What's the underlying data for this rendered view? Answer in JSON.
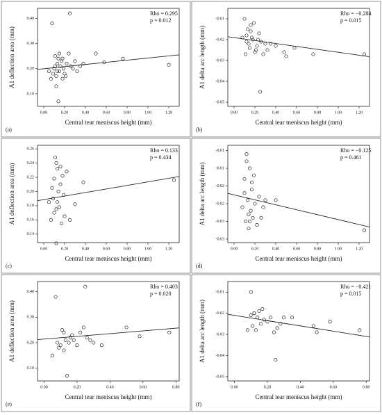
{
  "chart_data": [
    {
      "type": "scatter",
      "panel": "(a)",
      "x_label": "Central tear meniscus height (mm)",
      "y_label": "A1 deflection area (mm)",
      "annotations": [
        "Rho = 0.295",
        "p = 0.012"
      ],
      "color": "#222222",
      "x": [
        0.08,
        0.25,
        0.14,
        1.2,
        0.76,
        0.58,
        0.5,
        0.05,
        0.07,
        0.09,
        0.1,
        0.11,
        0.12,
        0.13,
        0.14,
        0.15,
        0.16,
        0.17,
        0.18,
        0.19,
        0.2,
        0.22,
        0.24,
        0.26,
        0.28,
        0.3,
        0.32,
        0.35,
        0.38,
        0.12,
        0.15,
        0.18,
        0.21,
        0.11,
        0.13
      ],
      "y": [
        0.38,
        0.42,
        0.07,
        0.215,
        0.24,
        0.225,
        0.26,
        0.19,
        0.16,
        0.18,
        0.2,
        0.25,
        0.17,
        0.22,
        0.24,
        0.19,
        0.21,
        0.23,
        0.16,
        0.2,
        0.18,
        0.22,
        0.26,
        0.21,
        0.2,
        0.23,
        0.19,
        0.21,
        0.22,
        0.13,
        0.26,
        0.24,
        0.17,
        0.21,
        0.19
      ],
      "trend_line": {
        "x": [
          -0.06,
          1.3
        ],
        "y": [
          0.197,
          0.255
        ]
      },
      "xlim": [
        -0.06,
        1.3
      ],
      "ylim": [
        0.05,
        0.44
      ],
      "xticks": [
        {
          "value": 0,
          "label": "0.00"
        },
        {
          "value": 0.2,
          "label": "0.20"
        },
        {
          "value": 0.4,
          "label": "0.40"
        },
        {
          "value": 0.6,
          "label": "0.60"
        },
        {
          "value": 0.8,
          "label": "0.80"
        },
        {
          "value": 1,
          "label": "1.00"
        },
        {
          "value": 1.2,
          "label": "1.20"
        }
      ],
      "yticks": [
        {
          "value": 0.1,
          "label": "0.10"
        },
        {
          "value": 0.2,
          "label": "0.20"
        },
        {
          "value": 0.3,
          "label": "0.30"
        },
        {
          "value": 0.4,
          "label": "0.40"
        }
      ]
    },
    {
      "type": "scatter",
      "panel": "(b)",
      "x_label": "Central tear meniscus height (mm)",
      "y_label": "A1 delta arc length (mm)",
      "annotations": [
        "Rho = −0.284",
        "p = 0.015"
      ],
      "color": "#222222",
      "x": [
        0.25,
        1.25,
        0.76,
        0.5,
        0.58,
        0.48,
        0.1,
        0.12,
        0.14,
        0.16,
        0.18,
        0.2,
        0.22,
        0.24,
        0.26,
        0.28,
        0.3,
        0.32,
        0.35,
        0.4,
        0.08,
        0.11,
        0.13,
        0.15,
        0.17,
        0.19,
        0.21,
        0.23,
        0.12,
        0.16
      ],
      "y": [
        -0.045,
        -0.027,
        -0.027,
        -0.028,
        -0.024,
        -0.026,
        -0.01,
        -0.018,
        -0.022,
        -0.013,
        -0.02,
        -0.026,
        -0.023,
        -0.017,
        -0.021,
        -0.027,
        -0.022,
        -0.025,
        -0.022,
        -0.023,
        -0.019,
        -0.027,
        -0.015,
        -0.024,
        -0.019,
        -0.012,
        -0.025,
        -0.02,
        -0.021,
        -0.016
      ],
      "trend_line": {
        "x": [
          -0.06,
          1.3
        ],
        "y": [
          -0.0186,
          -0.0282
        ]
      },
      "xlim": [
        -0.06,
        1.3
      ],
      "ylim": [
        -0.052,
        -0.005
      ],
      "xticks": [
        {
          "value": 0,
          "label": "0.00"
        },
        {
          "value": 0.2,
          "label": "0.20"
        },
        {
          "value": 0.4,
          "label": "0.40"
        },
        {
          "value": 0.6,
          "label": "0.60"
        },
        {
          "value": 0.8,
          "label": "0.80"
        },
        {
          "value": 1,
          "label": "1.00"
        },
        {
          "value": 1.2,
          "label": "1.20"
        }
      ],
      "yticks": [
        -0.01,
        -0.02,
        -0.03,
        -0.04,
        -0.05
      ]
    },
    {
      "type": "scatter",
      "panel": "(c)",
      "x_label": "Central tear meniscus height (mm)",
      "y_label": "A1 deflection area (mm)",
      "annotations": [
        "Rho = 0.133",
        "p = 0.434"
      ],
      "color": "#222222",
      "x": [
        1.25,
        0.38,
        0.3,
        0.12,
        0.05,
        0.07,
        0.08,
        0.09,
        0.1,
        0.11,
        0.12,
        0.13,
        0.14,
        0.15,
        0.16,
        0.17,
        0.18,
        0.19,
        0.2,
        0.22,
        0.25,
        0.1,
        0.13,
        0.16,
        0.12
      ],
      "y": [
        0.216,
        0.213,
        0.182,
        0.127,
        0.185,
        0.16,
        0.205,
        0.19,
        0.218,
        0.248,
        0.175,
        0.232,
        0.2,
        0.178,
        0.235,
        0.155,
        0.222,
        0.195,
        0.165,
        0.228,
        0.16,
        0.17,
        0.185,
        0.21,
        0.24
      ],
      "trend_line": {
        "x": [
          -0.06,
          1.3
        ],
        "y": [
          0.187,
          0.221
        ]
      },
      "xlim": [
        -0.06,
        1.3
      ],
      "ylim": [
        0.128,
        0.265
      ],
      "xticks": [
        {
          "value": 0,
          "label": "0.00"
        },
        {
          "value": 0.2,
          "label": "0.20"
        },
        {
          "value": 0.4,
          "label": "0.40"
        },
        {
          "value": 0.6,
          "label": "0.60"
        },
        {
          "value": 0.8,
          "label": "0.80"
        },
        {
          "value": 1,
          "label": "1.00"
        },
        {
          "value": 1.2,
          "label": "1.20"
        }
      ],
      "yticks": [
        0.14,
        0.16,
        0.18,
        {
          "value": 0.2,
          "label": "0.20"
        },
        0.22,
        0.24,
        0.26
      ]
    },
    {
      "type": "scatter",
      "panel": "(d)",
      "x_label": "Central tear meniscus height (mm)",
      "y_label": "A1 delta arc length (mm)",
      "annotations": [
        "Rho = −0.125",
        "p = 0.461"
      ],
      "color": "#222222",
      "x": [
        1.25,
        0.4,
        0.08,
        0.1,
        0.11,
        0.12,
        0.13,
        0.14,
        0.15,
        0.16,
        0.17,
        0.18,
        0.19,
        0.2,
        0.22,
        0.24,
        0.26,
        0.28,
        0.3,
        0.12,
        0.14,
        0.17,
        0.1,
        0.15
      ],
      "y": [
        -0.0275,
        -0.019,
        -0.021,
        -0.013,
        -0.025,
        -0.006,
        -0.019,
        -0.027,
        -0.01,
        -0.022,
        -0.016,
        -0.024,
        -0.012,
        -0.02,
        -0.026,
        -0.018,
        -0.024,
        -0.021,
        -0.019,
        -0.008,
        -0.023,
        -0.014,
        -0.017,
        -0.025
      ],
      "trend_line": {
        "x": [
          -0.06,
          1.3
        ],
        "y": [
          -0.0171,
          -0.0266
        ]
      },
      "xlim": [
        -0.06,
        1.3
      ],
      "ylim": [
        -0.031,
        -0.0035
      ],
      "xticks": [
        {
          "value": 0,
          "label": "0.00"
        },
        {
          "value": 0.2,
          "label": "0.20"
        },
        {
          "value": 0.4,
          "label": "0.40"
        },
        {
          "value": 0.6,
          "label": "0.60"
        },
        {
          "value": 0.8,
          "label": "0.80"
        },
        {
          "value": 1,
          "label": "1.00"
        },
        {
          "value": 1.2,
          "label": "1.20"
        }
      ],
      "yticks": [
        {
          "value": -0.005,
          "label": "-0.01"
        },
        {
          "value": -0.01,
          "label": "-0.01"
        },
        {
          "value": -0.015,
          "label": "-0.02"
        },
        {
          "value": -0.02,
          "label": "-0.02"
        },
        {
          "value": -0.025,
          "label": "-0.03"
        },
        {
          "value": -0.03,
          "label": "-0.03"
        }
      ]
    },
    {
      "type": "scatter",
      "panel": "(e)",
      "x_label": "Central tear meniscus height (mm)",
      "y_label": "A1 deflection area (mm)",
      "annotations": [
        "Rho = 0.403",
        "p = 0.020"
      ],
      "color": "#222222",
      "x": [
        0.25,
        0.07,
        0.14,
        0.76,
        0.5,
        0.58,
        0.05,
        0.08,
        0.09,
        0.1,
        0.11,
        0.12,
        0.13,
        0.15,
        0.16,
        0.17,
        0.18,
        0.2,
        0.22,
        0.24,
        0.26,
        0.28,
        0.3,
        0.35,
        0.12
      ],
      "y": [
        0.42,
        0.38,
        0.07,
        0.24,
        0.26,
        0.225,
        0.15,
        0.2,
        0.18,
        0.19,
        0.25,
        0.24,
        0.21,
        0.2,
        0.22,
        0.23,
        0.21,
        0.19,
        0.24,
        0.26,
        0.22,
        0.21,
        0.2,
        0.19,
        0.17
      ],
      "trend_line": {
        "x": [
          -0.04,
          0.82
        ],
        "y": [
          0.212,
          0.258
        ]
      },
      "xlim": [
        -0.04,
        0.82
      ],
      "ylim": [
        0.05,
        0.44
      ],
      "xticks": [
        {
          "value": 0,
          "label": "0.00"
        },
        {
          "value": 0.2,
          "label": "0.20"
        },
        {
          "value": 0.4,
          "label": "0.40"
        },
        {
          "value": 0.6,
          "label": "0.60"
        },
        {
          "value": 0.8,
          "label": "0.80"
        }
      ],
      "yticks": [
        {
          "value": 0.1,
          "label": "0.10"
        },
        {
          "value": 0.2,
          "label": "0.20"
        },
        {
          "value": 0.3,
          "label": "0.30"
        },
        {
          "value": 0.4,
          "label": "0.40"
        }
      ]
    },
    {
      "type": "scatter",
      "panel": "(f)",
      "x_label": "Central tear meniscus height (mm)",
      "y_label": "A1 delta arc length (mm)",
      "annotations": [
        "Rho = −0.421",
        "p = 0.015"
      ],
      "color": "#222222",
      "x": [
        0.1,
        0.25,
        0.76,
        0.58,
        0.5,
        0.48,
        0.08,
        0.1,
        0.12,
        0.13,
        0.14,
        0.15,
        0.16,
        0.17,
        0.18,
        0.2,
        0.22,
        0.24,
        0.26,
        0.28,
        0.3,
        0.35,
        0.12,
        0.11
      ],
      "y": [
        -0.01,
        -0.042,
        -0.028,
        -0.024,
        -0.029,
        -0.026,
        -0.028,
        -0.021,
        -0.02,
        -0.028,
        -0.022,
        -0.019,
        -0.025,
        -0.018,
        -0.023,
        -0.024,
        -0.022,
        -0.029,
        -0.027,
        -0.025,
        -0.022,
        -0.022,
        -0.02,
        -0.026
      ],
      "trend_line": {
        "x": [
          -0.04,
          0.82
        ],
        "y": [
          -0.0205,
          -0.0312
        ]
      },
      "xlim": [
        -0.04,
        0.82
      ],
      "ylim": [
        -0.052,
        -0.005
      ],
      "xticks": [
        {
          "value": 0,
          "label": "0.00"
        },
        {
          "value": 0.2,
          "label": "0.20"
        },
        {
          "value": 0.4,
          "label": "0.40"
        },
        {
          "value": 0.6,
          "label": "0.60"
        },
        {
          "value": 0.8,
          "label": "0.80"
        }
      ],
      "yticks": [
        -0.01,
        -0.02,
        -0.03,
        -0.04,
        -0.05
      ]
    }
  ]
}
